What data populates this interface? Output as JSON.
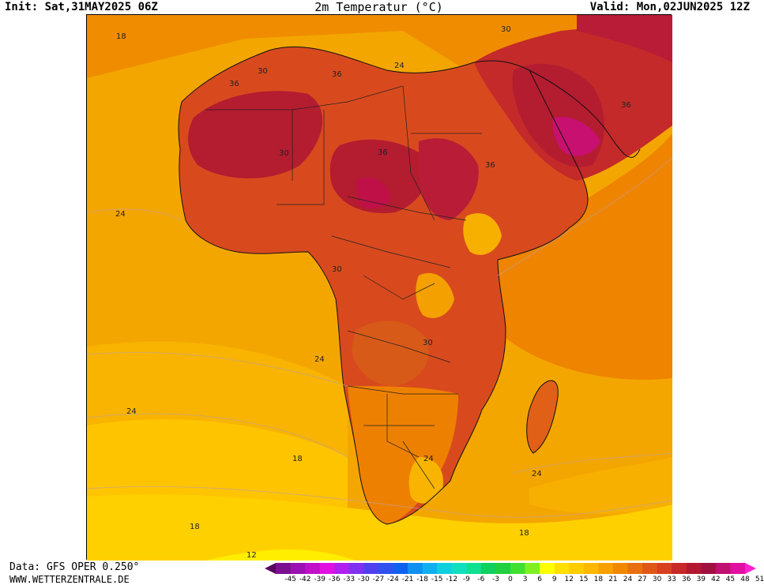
{
  "header": {
    "init": "Init: Sat,31MAY2025 06Z",
    "title": "2m Temperatur (°C)",
    "valid": "Valid: Mon,02JUN2025 12Z"
  },
  "footer": {
    "source": "Data: GFS OPER 0.250°",
    "site": "WWW.WETTERZENTRALE.DE"
  },
  "contour_labels": [
    "18",
    "30",
    "24",
    "36",
    "30",
    "36",
    "30",
    "36",
    "36",
    "24",
    "36",
    "30",
    "30",
    "24",
    "24",
    "18",
    "24",
    "24",
    "18",
    "18",
    "12"
  ],
  "legend": {
    "ticks": [
      "-45",
      "-42",
      "-39",
      "-36",
      "-33",
      "-30",
      "-27",
      "-24",
      "-21",
      "-18",
      "-15",
      "-12",
      "-9",
      "-6",
      "-3",
      "0",
      "3",
      "6",
      "9",
      "12",
      "15",
      "18",
      "21",
      "24",
      "27",
      "30",
      "33",
      "36",
      "39",
      "42",
      "45",
      "48",
      "51"
    ],
    "colors": [
      "#5a0060",
      "#7a1090",
      "#9a10b0",
      "#c010c8",
      "#e010e0",
      "#b020f0",
      "#8030f0",
      "#5040f0",
      "#3050f0",
      "#1060f0",
      "#1090f0",
      "#10b0f0",
      "#10d0e0",
      "#10e0c0",
      "#10e090",
      "#10d060",
      "#20d040",
      "#40e030",
      "#80f020",
      "#ffff00",
      "#ffe000",
      "#ffcc00",
      "#ffb800",
      "#f8a000",
      "#f08800",
      "#e87010",
      "#e05818",
      "#d84020",
      "#c82828",
      "#b41830",
      "#a01040",
      "#c01070",
      "#e010a0",
      "#ff20d0"
    ]
  },
  "colors": {
    "warm_ocean": "#f4a600",
    "hot_land": "#d83c20",
    "very_hot": "#b81c36",
    "cool_ocean": "#ffcc00",
    "coldest": "#ffee00"
  }
}
